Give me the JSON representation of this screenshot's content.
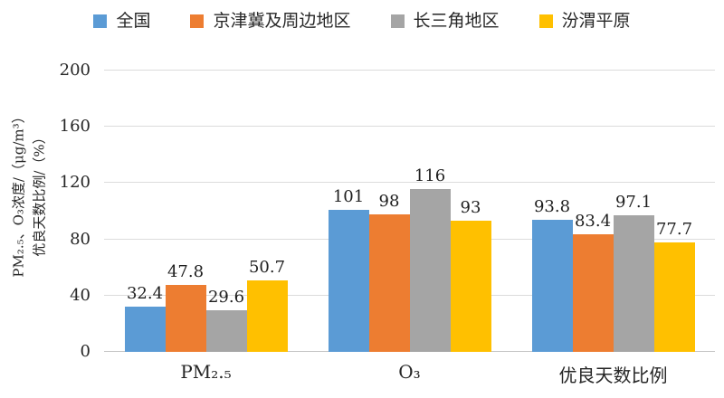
{
  "chart_data": {
    "type": "bar",
    "categories": [
      "PM₂.₅",
      "O₃",
      "优良天数比例"
    ],
    "series": [
      {
        "name": "全国",
        "color": "#5B9BD5",
        "values": [
          32.4,
          101,
          93.8
        ]
      },
      {
        "name": "京津冀及周边地区",
        "color": "#ED7D31",
        "values": [
          47.8,
          98,
          83.4
        ]
      },
      {
        "name": "长三角地区",
        "color": "#A5A5A5",
        "values": [
          29.6,
          116,
          97.1
        ]
      },
      {
        "name": "汾渭平原",
        "color": "#FFC000",
        "values": [
          50.7,
          93,
          77.7
        ]
      }
    ],
    "ylabel_line1": "PM₂.₅、O₃浓度/（μg/m³）",
    "ylabel_line2": "优良天数比例/（%）",
    "xlabel": "",
    "ylim": [
      0,
      200
    ],
    "ytick_step": 40,
    "yticks": [
      "0",
      "40",
      "80",
      "120",
      "160",
      "200"
    ],
    "grid": true,
    "legend_position": "top",
    "gridline_color": "#dcdcdc",
    "axis_text_color": "#262626",
    "data_labels_shown": true
  }
}
